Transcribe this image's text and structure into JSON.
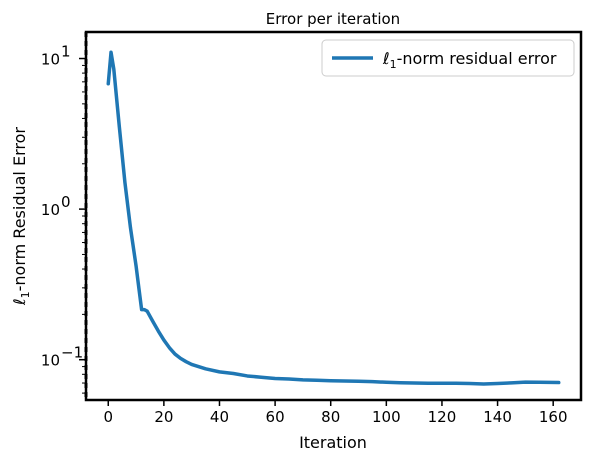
{
  "chart_data": {
    "type": "line",
    "title": "Error per iteration",
    "xlabel": "Iteration",
    "ylabel_symbol": "ℓ",
    "ylabel_sub": "1",
    "ylabel_rest": "-norm Residual Error",
    "yscale": "log",
    "xlim": [
      -8,
      170
    ],
    "ylim": [
      0.054,
      15
    ],
    "x_ticks": [
      0,
      20,
      40,
      60,
      80,
      100,
      120,
      140,
      160
    ],
    "x_tick_labels": [
      "0",
      "20",
      "40",
      "60",
      "80",
      "100",
      "120",
      "140",
      "160"
    ],
    "y_ticks": [
      {
        "value": 10,
        "base": "10",
        "exp": "1"
      },
      {
        "value": 1,
        "base": "10",
        "exp": "0"
      },
      {
        "value": 0.1,
        "base": "10",
        "exp": "−1"
      }
    ],
    "grid": false,
    "legend": {
      "position": "top-right",
      "entries": [
        {
          "symbol": "ℓ",
          "sub": "1",
          "rest": "-norm residual error",
          "color": "#1f77b4"
        }
      ]
    },
    "series": [
      {
        "color": "#1f77b4",
        "x": [
          0,
          1,
          2,
          4,
          6,
          8,
          10,
          11,
          12,
          13,
          14,
          16,
          18,
          20,
          22,
          24,
          26,
          28,
          30,
          35,
          40,
          45,
          50,
          55,
          60,
          65,
          70,
          75,
          80,
          85,
          90,
          95,
          100,
          105,
          110,
          115,
          120,
          125,
          130,
          135,
          140,
          145,
          150,
          155,
          162
        ],
        "y": [
          6.8,
          11.0,
          8.5,
          3.5,
          1.5,
          0.75,
          0.42,
          0.3,
          0.215,
          0.215,
          0.21,
          0.18,
          0.155,
          0.135,
          0.12,
          0.109,
          0.102,
          0.097,
          0.093,
          0.087,
          0.083,
          0.081,
          0.078,
          0.0765,
          0.075,
          0.0745,
          0.0735,
          0.073,
          0.0725,
          0.0722,
          0.072,
          0.0715,
          0.0708,
          0.0703,
          0.07,
          0.0697,
          0.0698,
          0.0697,
          0.0695,
          0.069,
          0.0695,
          0.0702,
          0.071,
          0.0708,
          0.0705
        ]
      }
    ]
  }
}
